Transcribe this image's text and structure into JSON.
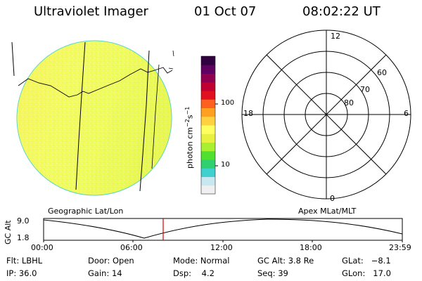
{
  "header": {
    "title": "Ultraviolet Imager",
    "date": "01 Oct 07",
    "time": "08:02:22 UT"
  },
  "colorbar": {
    "unit_label_main": "photon cm",
    "unit_exp1": "−2",
    "unit_mid": "s",
    "unit_exp2": "−1",
    "ticks": [
      "100",
      "10"
    ],
    "colors": [
      "#f0f0f0",
      "#c8e8f0",
      "#40d0d0",
      "#30d070",
      "#50e030",
      "#a8f030",
      "#e8f040",
      "#ffff60",
      "#ffd040",
      "#ffa020",
      "#ff6020",
      "#e01020",
      "#c00030",
      "#900050",
      "#600060",
      "#300040"
    ]
  },
  "geo_map": {
    "label": "Geographic Lat/Lon",
    "fill_color": "#f0ff60"
  },
  "polar_plot": {
    "label": "Apex MLat/MLT",
    "mlt_labels": {
      "top": "12",
      "left": "18",
      "right": "6",
      "bottom": "0"
    },
    "mlat_labels": [
      "60",
      "70",
      "80"
    ]
  },
  "altitude_plot": {
    "axis_title": "GC Alt",
    "y_ticks": [
      "9.0",
      "1.8"
    ],
    "x_ticks": [
      "00:00",
      "06:00",
      "12:00",
      "18:00",
      "23:59"
    ],
    "marker_color": "#dd0000",
    "marker_time": "08:02"
  },
  "status": {
    "row1": [
      {
        "label": "Flt:",
        "value": "LBHL"
      },
      {
        "label": "Door:",
        "value": "Open"
      },
      {
        "label": "Mode:",
        "value": "Normal"
      },
      {
        "label": "GC Alt:",
        "value": "3.8 Re"
      },
      {
        "label": "GLat:",
        "value": "−8.1"
      }
    ],
    "row2": [
      {
        "label": "IP:",
        "value": "36.0"
      },
      {
        "label": "Gain:",
        "value": "14"
      },
      {
        "label": "Dsp:",
        "value": "4.2"
      },
      {
        "label": "Seq:",
        "value": "39"
      },
      {
        "label": "GLon:",
        "value": "17.0"
      }
    ]
  }
}
